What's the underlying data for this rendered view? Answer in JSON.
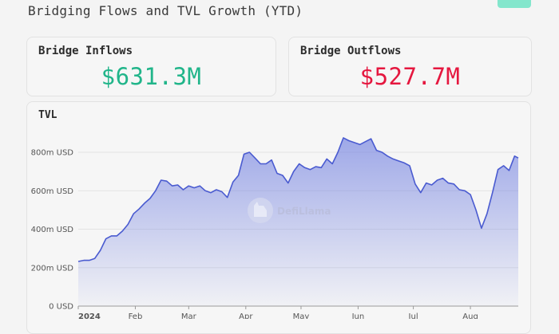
{
  "page": {
    "title": "Bridging Flows and TVL Growth (YTD)"
  },
  "inflows": {
    "label": "Bridge Inflows",
    "value": "$631.3M",
    "color": "#21b58a"
  },
  "outflows": {
    "label": "Bridge Outflows",
    "value": "$527.7M",
    "color": "#e5173f"
  },
  "watermark": {
    "text": "DefiLlama"
  },
  "chart_data": {
    "type": "area",
    "title": "TVL",
    "xlabel": "",
    "ylabel": "",
    "y_unit": "USD",
    "ylim": [
      0,
      800
    ],
    "y_ticks": [
      0,
      200,
      400,
      600,
      800
    ],
    "y_tick_labels": [
      "0 USD",
      "200m USD",
      "400m USD",
      "600m USD",
      "800m USD"
    ],
    "x_tick_labels": [
      "2024",
      "Feb",
      "Mar",
      "Apr",
      "May",
      "Jun",
      "Jul",
      "Aug"
    ],
    "grid": true,
    "line_color": "#4a5bd0",
    "fill_color": "#6f7ee0",
    "series": [
      {
        "x": [
          "2024-01-01",
          "2024-01-04",
          "2024-01-07",
          "2024-01-10",
          "2024-01-13",
          "2024-01-16",
          "2024-01-19",
          "2024-01-22",
          "2024-01-25",
          "2024-01-28",
          "2024-01-31",
          "2024-02-03",
          "2024-02-06",
          "2024-02-09",
          "2024-02-12",
          "2024-02-15",
          "2024-02-18",
          "2024-02-21",
          "2024-02-24",
          "2024-02-27",
          "2024-03-01",
          "2024-03-04",
          "2024-03-07",
          "2024-03-10",
          "2024-03-13",
          "2024-03-16",
          "2024-03-19",
          "2024-03-22",
          "2024-03-25",
          "2024-03-28",
          "2024-03-31",
          "2024-04-03",
          "2024-04-06",
          "2024-04-09",
          "2024-04-12",
          "2024-04-15",
          "2024-04-18",
          "2024-04-21",
          "2024-04-24",
          "2024-04-27",
          "2024-04-30",
          "2024-05-03",
          "2024-05-06",
          "2024-05-09",
          "2024-05-12",
          "2024-05-15",
          "2024-05-18",
          "2024-05-21",
          "2024-05-24",
          "2024-05-27",
          "2024-05-30",
          "2024-06-02",
          "2024-06-05",
          "2024-06-08",
          "2024-06-11",
          "2024-06-14",
          "2024-06-17",
          "2024-06-20",
          "2024-06-23",
          "2024-06-26",
          "2024-06-29",
          "2024-07-02",
          "2024-07-05",
          "2024-07-08",
          "2024-07-11",
          "2024-07-14",
          "2024-07-17",
          "2024-07-20",
          "2024-07-23",
          "2024-07-26",
          "2024-07-29",
          "2024-08-01",
          "2024-08-04",
          "2024-08-07",
          "2024-08-10",
          "2024-08-13",
          "2024-08-16",
          "2024-08-19",
          "2024-08-22",
          "2024-08-25",
          "2024-08-27"
        ],
        "values": [
          232,
          238,
          238,
          248,
          290,
          350,
          365,
          365,
          390,
          425,
          480,
          505,
          535,
          560,
          600,
          655,
          650,
          625,
          630,
          605,
          625,
          615,
          625,
          600,
          590,
          605,
          595,
          565,
          645,
          680,
          790,
          800,
          770,
          740,
          740,
          760,
          690,
          680,
          640,
          700,
          740,
          720,
          710,
          725,
          720,
          765,
          740,
          800,
          875,
          860,
          850,
          840,
          855,
          870,
          810,
          800,
          780,
          765,
          755,
          745,
          730,
          635,
          590,
          640,
          630,
          655,
          665,
          640,
          635,
          605,
          600,
          580,
          500,
          405,
          480,
          590,
          710,
          730,
          705,
          780,
          770
        ]
      }
    ]
  }
}
